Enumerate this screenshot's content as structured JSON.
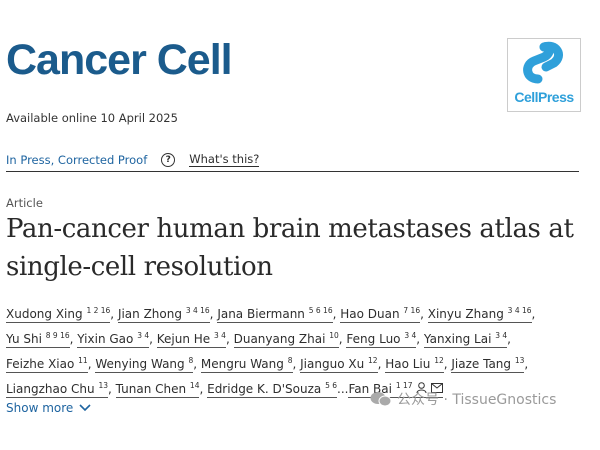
{
  "journal": {
    "name": "Cancer Cell",
    "available": "Available online 10 April 2025",
    "logo_text": "CellPress",
    "logo_color": "#2fa0da"
  },
  "status": {
    "in_press": "In Press, Corrected Proof",
    "help_icon": "?",
    "whats_this": "What's this?"
  },
  "article": {
    "type": "Article",
    "title_line1": "Pan-cancer human brain metastases atlas at",
    "title_line2": "single-cell resolution"
  },
  "authors": [
    [
      {
        "name": "Xudong Xing",
        "sup": "1 2 16"
      },
      {
        "name": "Jian Zhong",
        "sup": "3 4 16"
      },
      {
        "name": "Jana Biermann",
        "sup": "5 6 16"
      },
      {
        "name": "Hao Duan",
        "sup": "7 16"
      },
      {
        "name": "Xinyu Zhang",
        "sup": "3 4 16"
      }
    ],
    [
      {
        "name": "Yu Shi",
        "sup": "8 9 16"
      },
      {
        "name": "Yixin Gao",
        "sup": "3 4"
      },
      {
        "name": "Kejun He",
        "sup": "3 4"
      },
      {
        "name": "Duanyang Zhai",
        "sup": "10"
      },
      {
        "name": "Feng Luo",
        "sup": "3 4"
      },
      {
        "name": "Yanxing Lai",
        "sup": "3 4"
      }
    ],
    [
      {
        "name": "Feizhe Xiao",
        "sup": "11"
      },
      {
        "name": "Wenying Wang",
        "sup": "8"
      },
      {
        "name": "Mengru Wang",
        "sup": "8"
      },
      {
        "name": "Jianguo Xu",
        "sup": "12"
      },
      {
        "name": "Hao Liu",
        "sup": "12"
      },
      {
        "name": "Jiaze Tang",
        "sup": "13"
      }
    ],
    [
      {
        "name": "Liangzhao Chu",
        "sup": "13"
      },
      {
        "name": "Tunan Chen",
        "sup": "14"
      },
      {
        "name": "Edridge K. D'Souza",
        "sup": "5 6"
      },
      {
        "name": "Fan Bai",
        "sup": "1 17"
      }
    ]
  ],
  "show_more": "Show more",
  "watermark": "公众号 · TissueGnostics"
}
